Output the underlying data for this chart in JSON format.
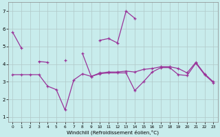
{
  "xlabel": "Windchill (Refroidissement éolien,°C)",
  "background_color": "#c8ecec",
  "grid_color": "#b0c8c8",
  "line_color": "#993399",
  "x_ticks": [
    0,
    1,
    2,
    3,
    4,
    5,
    6,
    7,
    8,
    9,
    10,
    11,
    12,
    13,
    14,
    15,
    16,
    17,
    18,
    19,
    20,
    21,
    22,
    23
  ],
  "y_ticks": [
    1,
    2,
    3,
    4,
    5,
    6,
    7
  ],
  "ylim": [
    0.7,
    7.5
  ],
  "xlim": [
    -0.5,
    23.5
  ],
  "series": [
    [
      5.8,
      4.9,
      null,
      null,
      null,
      null,
      null,
      null,
      null,
      null,
      5.35,
      5.45,
      5.2,
      7.0,
      6.6,
      null,
      null,
      null,
      null,
      null,
      null,
      null,
      null,
      null
    ],
    [
      null,
      null,
      null,
      4.15,
      4.1,
      null,
      4.2,
      null,
      4.6,
      3.3,
      3.5,
      3.55,
      3.55,
      3.6,
      3.55,
      3.7,
      3.75,
      3.85,
      3.85,
      3.75,
      3.5,
      4.1,
      3.45,
      3.0
    ],
    [
      3.4,
      3.4,
      3.4,
      3.4,
      2.75,
      2.55,
      1.4,
      3.1,
      3.45,
      3.3,
      3.45,
      3.5,
      3.5,
      3.5,
      2.5,
      3.0,
      3.55,
      3.8,
      3.8,
      3.4,
      3.35,
      4.05,
      3.4,
      2.95
    ]
  ]
}
